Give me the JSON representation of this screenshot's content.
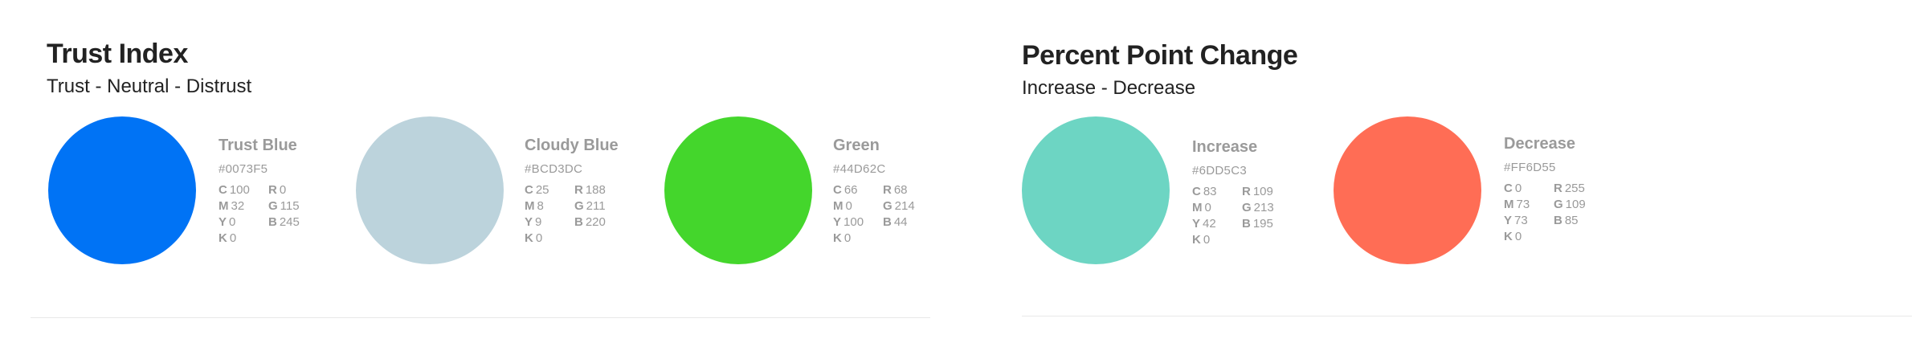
{
  "trust_index": {
    "title": "Trust Index",
    "subtitle": "Trust - Neutral - Distrust",
    "swatches": [
      {
        "name": "Trust Blue",
        "hex": "#0073F5",
        "color": "#0073F5",
        "cmyk": {
          "c": "100",
          "m": "32",
          "y": "0",
          "k": "0"
        },
        "rgb": {
          "r": "0",
          "g": "115",
          "b": "245"
        }
      },
      {
        "name": "Cloudy Blue",
        "hex": "#BCD3DC",
        "color": "#BCD3DC",
        "cmyk": {
          "c": "25",
          "m": "8",
          "y": "9",
          "k": "0"
        },
        "rgb": {
          "r": "188",
          "g": "211",
          "b": "220"
        }
      },
      {
        "name": "Green",
        "hex": "#44D62C",
        "color": "#44D62C",
        "cmyk": {
          "c": "66",
          "m": "0",
          "y": "100",
          "k": "0"
        },
        "rgb": {
          "r": "68",
          "g": "214",
          "b": "44"
        }
      }
    ]
  },
  "percent_point_change": {
    "title": "Percent Point Change",
    "subtitle": "Increase - Decrease",
    "swatches": [
      {
        "name": "Increase",
        "hex": "#6DD5C3",
        "color": "#6DD5C3",
        "cmyk": {
          "c": "83",
          "m": "0",
          "y": "42",
          "k": "0"
        },
        "rgb": {
          "r": "109",
          "g": "213",
          "b": "195"
        }
      },
      {
        "name": "Decrease",
        "hex": "#FF6D55",
        "color": "#FF6D55",
        "cmyk": {
          "c": "0",
          "m": "73",
          "y": "73",
          "k": "0"
        },
        "rgb": {
          "r": "255",
          "g": "109",
          "b": "85"
        }
      }
    ]
  },
  "labels": {
    "c": "C",
    "m": "M",
    "y": "Y",
    "k": "K",
    "r": "R",
    "g": "G",
    "b": "B"
  }
}
